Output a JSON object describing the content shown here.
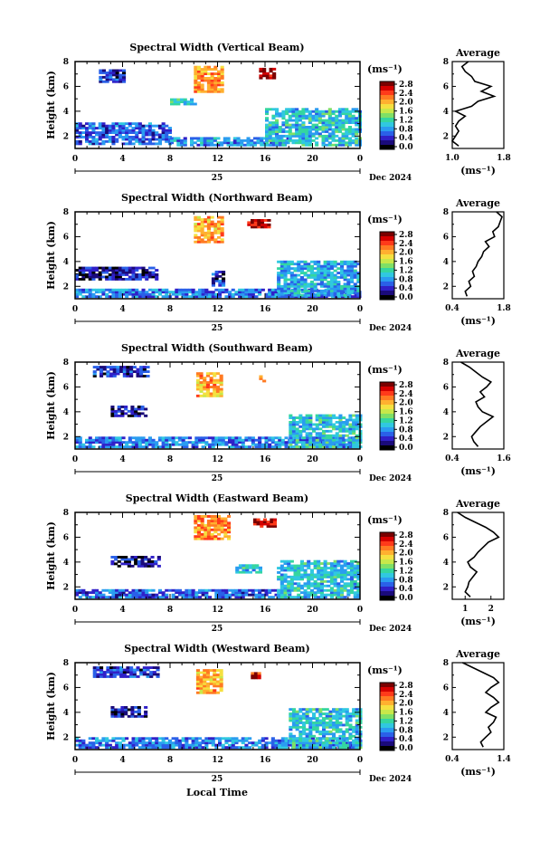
{
  "figure": {
    "xlabel": "Local Time",
    "ylabel": "Height (km)",
    "date_label": "Dec 2024",
    "day_label": "25",
    "avg_title": "Average",
    "unit_label": "(ms⁻¹)"
  },
  "colorbar": {
    "ticks": [
      "2.8",
      "2.4",
      "2.0",
      "1.6",
      "1.2",
      "0.8",
      "0.4",
      "0.0"
    ],
    "range": [
      0.0,
      2.8
    ],
    "colors": [
      "#7a0000",
      "#d40000",
      "#ff3a1a",
      "#ff7a22",
      "#ffb030",
      "#f5e040",
      "#c8e84a",
      "#7fe066",
      "#35d6a0",
      "#30c8e0",
      "#2a9cf0",
      "#2a60e8",
      "#3020c8",
      "#1a0a7a",
      "#000000"
    ]
  },
  "chart_data": [
    {
      "type": "heatmap",
      "title": "Spectral Width (Vertical Beam)",
      "x_ticks": [
        "0",
        "4",
        "8",
        "12",
        "16",
        "20",
        "0"
      ],
      "x_range_hours": [
        0,
        24
      ],
      "y_ticks": [
        "2",
        "4",
        "6",
        "8"
      ],
      "y_range_km": [
        1,
        8
      ],
      "patches": [
        {
          "t0": 2,
          "t1": 4,
          "h0": 6.3,
          "h1": 7.3,
          "value": 0.4
        },
        {
          "t0": 10,
          "t1": 12.5,
          "h0": 5.5,
          "h1": 7.5,
          "value": 2.1
        },
        {
          "t0": 15.5,
          "t1": 16.8,
          "h0": 6.6,
          "h1": 7.4,
          "value": 2.7
        },
        {
          "t0": 0,
          "t1": 8,
          "h0": 1.3,
          "h1": 3.1,
          "value": 0.6
        },
        {
          "t0": 8,
          "t1": 18,
          "h0": 1.2,
          "h1": 1.9,
          "value": 0.8
        },
        {
          "t0": 16,
          "t1": 24,
          "h0": 1.2,
          "h1": 4.2,
          "value": 1.0
        },
        {
          "t0": 8,
          "t1": 10,
          "h0": 4.5,
          "h1": 5.0,
          "value": 1.1
        }
      ],
      "average": {
        "x_range": [
          1.0,
          1.8
        ],
        "x_ticks": [
          "1.0",
          "1.8"
        ],
        "heights": [
          1.2,
          1.6,
          2.0,
          2.4,
          2.8,
          3.2,
          3.6,
          4.0,
          4.4,
          4.8,
          5.2,
          5.6,
          6.0,
          6.4,
          6.8,
          7.2,
          7.6,
          8.0
        ],
        "values": [
          1.1,
          1.0,
          1.05,
          1.1,
          1.05,
          1.1,
          1.2,
          1.05,
          1.3,
          1.4,
          1.65,
          1.45,
          1.6,
          1.35,
          1.3,
          1.2,
          1.15,
          1.25
        ]
      }
    },
    {
      "type": "heatmap",
      "title": "Spectral Width (Northward Beam)",
      "x_ticks": [
        "0",
        "4",
        "8",
        "12",
        "16",
        "20",
        "0"
      ],
      "x_range_hours": [
        0,
        24
      ],
      "y_ticks": [
        "2",
        "4",
        "6",
        "8"
      ],
      "y_range_km": [
        1,
        8
      ],
      "patches": [
        {
          "t0": 10,
          "t1": 12.5,
          "h0": 5.5,
          "h1": 7.5,
          "value": 2.0
        },
        {
          "t0": 14.5,
          "t1": 16.2,
          "h0": 6.7,
          "h1": 7.4,
          "value": 2.7
        },
        {
          "t0": 0,
          "t1": 7,
          "h0": 2.5,
          "h1": 3.5,
          "value": 0.3
        },
        {
          "t0": 0,
          "t1": 24,
          "h0": 1.1,
          "h1": 1.8,
          "value": 0.7
        },
        {
          "t0": 17,
          "t1": 24,
          "h0": 1.2,
          "h1": 4.0,
          "value": 0.9
        },
        {
          "t0": 11.5,
          "t1": 12.5,
          "h0": 2.0,
          "h1": 3.2,
          "value": 0.4
        }
      ],
      "average": {
        "x_range": [
          0.4,
          1.8
        ],
        "x_ticks": [
          "0.4",
          "1.8"
        ],
        "heights": [
          1.2,
          1.6,
          2.0,
          2.4,
          2.8,
          3.2,
          3.6,
          4.0,
          4.4,
          4.8,
          5.2,
          5.6,
          6.0,
          6.4,
          6.8,
          7.2,
          7.6,
          8.0
        ],
        "values": [
          0.8,
          0.75,
          0.9,
          0.85,
          1.0,
          0.95,
          1.05,
          1.1,
          1.2,
          1.25,
          1.4,
          1.3,
          1.55,
          1.5,
          1.65,
          1.7,
          1.75,
          1.6
        ]
      }
    },
    {
      "type": "heatmap",
      "title": "Spectral Width (Southward Beam)",
      "x_ticks": [
        "0",
        "4",
        "8",
        "12",
        "16",
        "20",
        "0"
      ],
      "x_range_hours": [
        0,
        24
      ],
      "y_ticks": [
        "2",
        "4",
        "6",
        "8"
      ],
      "y_range_km": [
        1,
        8
      ],
      "patches": [
        {
          "t0": 1.5,
          "t1": 6,
          "h0": 6.8,
          "h1": 7.6,
          "value": 0.4
        },
        {
          "t0": 10.2,
          "t1": 12.3,
          "h0": 5.2,
          "h1": 7.0,
          "value": 2.0
        },
        {
          "t0": 3,
          "t1": 6,
          "h0": 3.6,
          "h1": 4.4,
          "value": 0.3
        },
        {
          "t0": 0,
          "t1": 24,
          "h0": 1.1,
          "h1": 1.9,
          "value": 0.7
        },
        {
          "t0": 18,
          "t1": 24,
          "h0": 1.1,
          "h1": 3.7,
          "value": 1.0
        },
        {
          "t0": 15.5,
          "t1": 16,
          "h0": 6.4,
          "h1": 6.9,
          "value": 2.4
        }
      ],
      "average": {
        "x_range": [
          0.4,
          1.6
        ],
        "x_ticks": [
          "0.4",
          "1.6"
        ],
        "heights": [
          1.2,
          1.6,
          2.0,
          2.4,
          2.8,
          3.2,
          3.6,
          4.0,
          4.4,
          4.8,
          5.2,
          5.6,
          6.0,
          6.4,
          6.8,
          7.2,
          7.6,
          8.0
        ],
        "values": [
          1.0,
          0.9,
          0.85,
          0.95,
          1.05,
          1.2,
          1.35,
          1.1,
          1.0,
          0.95,
          1.15,
          1.05,
          1.2,
          1.3,
          1.1,
          0.95,
          0.8,
          0.6
        ]
      }
    },
    {
      "type": "heatmap",
      "title": "Spectral Width (Eastward Beam)",
      "x_ticks": [
        "0",
        "4",
        "8",
        "12",
        "16",
        "20",
        "0"
      ],
      "x_range_hours": [
        0,
        24
      ],
      "y_ticks": [
        "2",
        "4",
        "6",
        "8"
      ],
      "y_range_km": [
        1,
        8
      ],
      "patches": [
        {
          "t0": 10,
          "t1": 12.8,
          "h0": 5.8,
          "h1": 7.6,
          "value": 2.1
        },
        {
          "t0": 15,
          "t1": 16.8,
          "h0": 6.8,
          "h1": 7.5,
          "value": 2.7
        },
        {
          "t0": 3,
          "t1": 7,
          "h0": 3.6,
          "h1": 4.4,
          "value": 0.3
        },
        {
          "t0": 0,
          "t1": 18,
          "h0": 1.1,
          "h1": 1.8,
          "value": 0.6
        },
        {
          "t0": 17,
          "t1": 24,
          "h0": 1.1,
          "h1": 4.0,
          "value": 1.0
        },
        {
          "t0": 13.5,
          "t1": 15.5,
          "h0": 3.1,
          "h1": 3.7,
          "value": 1.0
        }
      ],
      "average": {
        "x_range": [
          0.5,
          2.5
        ],
        "x_ticks": [
          "1",
          "2"
        ],
        "heights": [
          1.2,
          1.6,
          2.0,
          2.4,
          2.8,
          3.2,
          3.6,
          4.0,
          4.4,
          4.8,
          5.2,
          5.6,
          6.0,
          6.4,
          6.8,
          7.2,
          7.6,
          8.0
        ],
        "values": [
          1.2,
          1.0,
          1.1,
          1.15,
          1.3,
          1.45,
          1.2,
          1.1,
          1.35,
          1.5,
          1.7,
          1.9,
          2.3,
          2.1,
          1.8,
          1.4,
          1.0,
          0.7
        ]
      }
    },
    {
      "type": "heatmap",
      "title": "Spectral Width (Westward Beam)",
      "x_ticks": [
        "0",
        "4",
        "8",
        "12",
        "16",
        "20",
        "0"
      ],
      "x_range_hours": [
        0,
        24
      ],
      "y_ticks": [
        "2",
        "4",
        "6",
        "8"
      ],
      "y_range_km": [
        1,
        8
      ],
      "patches": [
        {
          "t0": 1.5,
          "t1": 7,
          "h0": 6.8,
          "h1": 7.6,
          "value": 0.4
        },
        {
          "t0": 10.2,
          "t1": 12.3,
          "h0": 5.5,
          "h1": 7.4,
          "value": 2.0
        },
        {
          "t0": 14.8,
          "t1": 15.5,
          "h0": 6.7,
          "h1": 7.2,
          "value": 2.6
        },
        {
          "t0": 3,
          "t1": 6,
          "h0": 3.6,
          "h1": 4.4,
          "value": 0.3
        },
        {
          "t0": 0,
          "t1": 24,
          "h0": 1.1,
          "h1": 1.9,
          "value": 0.7
        },
        {
          "t0": 18,
          "t1": 24,
          "h0": 1.1,
          "h1": 4.2,
          "value": 1.0
        }
      ],
      "average": {
        "x_range": [
          0.4,
          1.4
        ],
        "x_ticks": [
          "0.4",
          "1.4"
        ],
        "heights": [
          1.2,
          1.6,
          2.0,
          2.4,
          2.8,
          3.2,
          3.6,
          4.0,
          4.4,
          4.8,
          5.2,
          5.6,
          6.0,
          6.4,
          6.8,
          7.2,
          7.6,
          8.0
        ],
        "values": [
          1.0,
          0.95,
          1.05,
          1.15,
          1.1,
          1.2,
          1.25,
          1.05,
          1.15,
          1.3,
          1.2,
          1.05,
          1.15,
          1.3,
          1.2,
          1.0,
          0.8,
          0.6
        ]
      }
    }
  ]
}
